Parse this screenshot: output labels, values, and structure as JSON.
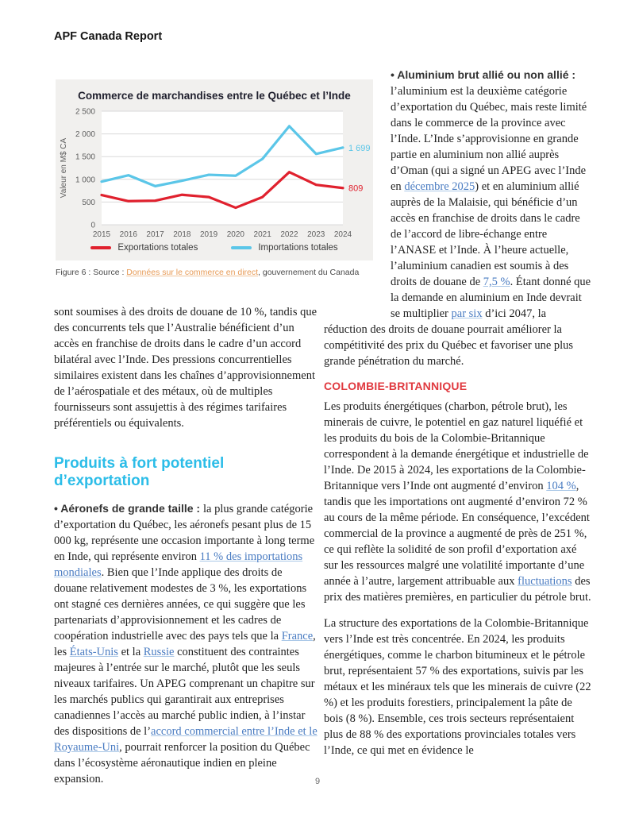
{
  "header": {
    "title": "APF Canada Report"
  },
  "page": {
    "number": "9"
  },
  "colors": {
    "accent_cyan": "#2cbde8",
    "accent_red": "#e0393f",
    "link_blue": "#4a7cc2",
    "caption_link_orange": "#e79a55",
    "chart_export_red": "#e0212e",
    "chart_import_blue": "#5bc6e8",
    "chart_panel_gray": "#f1f0ee"
  },
  "chart_data": {
    "type": "line",
    "title": "Commerce de marchandises entre le Québec et l’Inde",
    "xlabel": "",
    "ylabel": "Valeur en M$ CA",
    "categories": [
      "2015",
      "2016",
      "2017",
      "2018",
      "2019",
      "2020",
      "2021",
      "2022",
      "2023",
      "2024"
    ],
    "ylim": [
      0,
      2500
    ],
    "ytick_step": 500,
    "grid": true,
    "legend_position": "bottom",
    "series": [
      {
        "name": "Exportations totales",
        "color": "#e0212e",
        "values": [
          655,
          520,
          530,
          660,
          610,
          375,
          610,
          1160,
          880,
          809
        ],
        "end_label": "809"
      },
      {
        "name": "Importations totales",
        "color": "#5bc6e8",
        "values": [
          950,
          1090,
          850,
          970,
          1100,
          1080,
          1450,
          2170,
          1560,
          1699
        ],
        "end_label": "1 699"
      }
    ]
  },
  "figure": {
    "caption_prefix": "Figure 6 : Source : ",
    "caption_link": "Données sur le commerce en direct",
    "caption_suffix": ", gouvernement du Canada"
  },
  "left_column": {
    "para1_segments": [
      {
        "t": "sont soumises à des droits de douane de 10 %, tandis que des concurrents tels que l’Australie bénéficient d’un accès en franchise de droits dans le cadre d’un accord bilatéral avec l’Inde. Des pressions concurrentielles similaires existent dans les chaînes d’approvisionnement de l’aérospatiale et des métaux, où de multiples fournisseurs sont assujettis à des régimes tarifaires préférentiels ou équivalents."
      }
    ],
    "section_heading": "Produits à fort potentiel d’exportation",
    "para2_segments": [
      {
        "t": "• Aéronefs de grande taille :  ",
        "k": "b"
      },
      {
        "t": "la plus grande catégorie d’exportation du Québec, les aéronefs pesant plus de 15 000 kg, représente une occasion importante à long terme en Inde, qui représente environ "
      },
      {
        "t": "11 % des importations mondiales",
        "k": "a"
      },
      {
        "t": ". Bien que l’Inde applique des droits de douane relativement modestes de 3 %, les exportations ont stagné ces dernières années, ce qui suggère que les partenariats d’approvisionnement et les cadres de coopération industrielle avec des pays tels que la "
      },
      {
        "t": "France",
        "k": "a"
      },
      {
        "t": ", les "
      },
      {
        "t": "États-Unis",
        "k": "a"
      },
      {
        "t": " et la "
      },
      {
        "t": "Russie",
        "k": "a"
      },
      {
        "t": " constituent des contraintes majeures à l’entrée sur le marché, plutôt que les seuls niveaux tarifaires. Un APEG comprenant un chapitre sur les marchés publics qui garantirait aux entreprises canadiennes l’accès au marché public indien, à l’instar des dispositions de l’"
      },
      {
        "t": "accord commercial entre l’Inde et le Royaume-Uni",
        "k": "a"
      },
      {
        "t": ", pourrait renforcer la position du Québec dans l’écosystème aéronautique indien en pleine expansion."
      }
    ]
  },
  "right_column": {
    "para1_segments": [
      {
        "t": "• Aluminium brut allié ou non allié : ",
        "k": "b"
      },
      {
        "t": "l’aluminium est la deuxième catégorie d’exportation du Québec, mais reste limité dans le commerce de la province avec l’Inde. L’Inde s’approvisionne en grande partie en aluminium non allié auprès d’Oman (qui a signé un APEG avec l’Inde en "
      },
      {
        "t": "décembre 2025",
        "k": "a"
      },
      {
        "t": ") et en aluminium allié auprès de la Malaisie, qui bénéficie d’un accès en franchise de droits dans le cadre de l’accord de libre-échange entre l’ANASE et l’Inde. À l’heure actuelle, l’aluminium canadien est soumis à des droits de douane de "
      },
      {
        "t": "7,5 %",
        "k": "a"
      },
      {
        "t": ". Étant donné que la demande en aluminium en Inde devrait se multiplier "
      },
      {
        "t": "par six",
        "k": "a"
      },
      {
        "t": " d’ici 2047, la réduction des droits de douane pourrait améliorer la compétitivité des prix du Québec et favoriser une plus grande pénétration du marché."
      }
    ],
    "subsection_heading": "COLOMBIE-BRITANNIQUE",
    "para2_segments": [
      {
        "t": "Les produits énergétiques (charbon, pétrole brut), les minerais de cuivre, le potentiel en gaz naturel liquéfié et les produits du bois de la Colombie-Britannique correspondent à la demande énergétique et industrielle de l’Inde. De 2015 à 2024, les exportations de la Colombie-Britannique vers l’Inde ont augmenté d’environ "
      },
      {
        "t": "104 %",
        "k": "a"
      },
      {
        "t": ", tandis que les importations ont augmenté d’environ 72 % au cours de la même période. En conséquence, l’excédent commercial de la province a augmenté de près de 251 %, ce qui reflète la solidité de son profil d’exportation axé sur les ressources malgré une volatilité importante d’une année à l’autre, largement attribuable aux "
      },
      {
        "t": "fluctuations",
        "k": "a"
      },
      {
        "t": " des prix des matières premières, en particulier du pétrole brut."
      }
    ],
    "para3_segments": [
      {
        "t": "La structure des exportations de la Colombie-Britannique vers l’Inde est très concentrée. En 2024, les produits énergétiques, comme le charbon bitumineux et le pétrole brut, représentaient 57 % des exportations, suivis par les métaux et les minéraux tels que les minerais de cuivre (22 %) et les produits forestiers, principalement la pâte de bois (8 %). Ensemble, ces trois secteurs représentaient plus de 88 % des exportations provinciales totales vers l’Inde, ce qui met en évidence le"
      }
    ]
  }
}
